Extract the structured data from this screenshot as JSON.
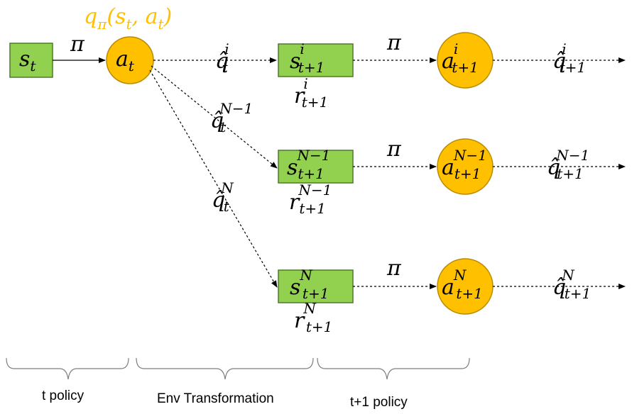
{
  "colors": {
    "state_fill": "#92D050",
    "state_stroke": "#4E7A2A",
    "action_fill": "#FFC000",
    "action_stroke": "#B98A00",
    "q_label": "#FFC000",
    "line": "#000000"
  },
  "top_label": {
    "func": "q",
    "sub": "π",
    "args": "(s",
    "args_sub": "t",
    "comma": ", a",
    "comma_sub": "t",
    "close": ")"
  },
  "policy_symbol": "π",
  "state_t": {
    "base": "s",
    "sub": "t"
  },
  "action_t": {
    "base": "a",
    "sub": "t"
  },
  "branches": [
    {
      "q_t": {
        "base": "q̂",
        "sub": "t",
        "sup": "i"
      },
      "state": {
        "base": "s",
        "sub": "t+1",
        "sup": "i"
      },
      "reward": {
        "base": "r",
        "sub": "t+1",
        "sup": "i"
      },
      "policy": "π",
      "action": {
        "base": "a",
        "sub": "t+1",
        "sup": "i"
      },
      "q_next": {
        "base": "q̂",
        "sub": "t+1",
        "sup": "i"
      }
    },
    {
      "q_t": {
        "base": "q̂",
        "sub": "t",
        "sup": "N−1"
      },
      "state": {
        "base": "s",
        "sub": "t+1",
        "sup": "N−1"
      },
      "reward": {
        "base": "r",
        "sub": "t+1",
        "sup": "N−1"
      },
      "policy": "π",
      "action": {
        "base": "a",
        "sub": "t+1",
        "sup": "N−1"
      },
      "q_next": {
        "base": "q̂",
        "sub": "t+1",
        "sup": "N−1"
      }
    },
    {
      "q_t": {
        "base": "q̂",
        "sub": "t",
        "sup": "N"
      },
      "state": {
        "base": "s",
        "sub": "t+1",
        "sup": "N"
      },
      "reward": {
        "base": "r",
        "sub": "t+1",
        "sup": "N"
      },
      "policy": "π",
      "action": {
        "base": "a",
        "sub": "t+1",
        "sup": "N"
      },
      "q_next": {
        "base": "q̂",
        "sub": "t+1",
        "sup": "N"
      }
    }
  ],
  "captions": {
    "t_policy": "t policy",
    "env_transformation": "Env Transformation",
    "t1_policy": "t+1 policy"
  }
}
